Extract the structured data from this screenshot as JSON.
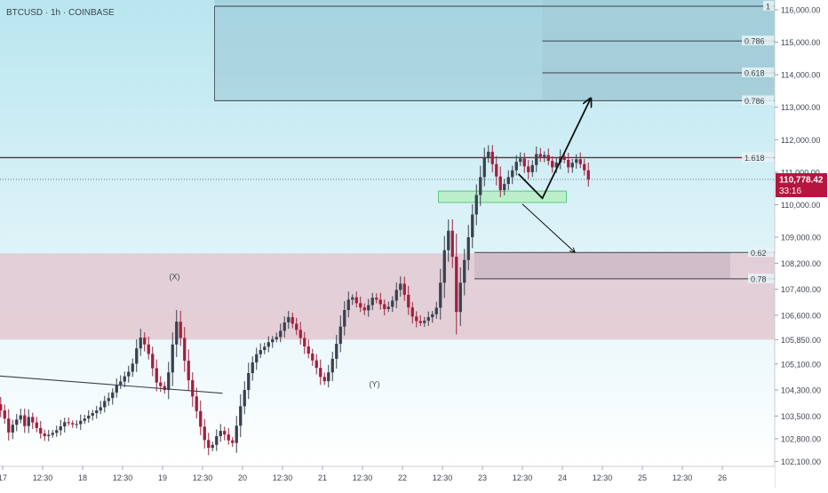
{
  "symbol_label": "BTCUSD · 1h · COINBASE",
  "colors": {
    "background_top": "#b9e6f0",
    "background_bottom": "#ffffff",
    "supply_zone": "#8fbfcc",
    "demand_zone": "#e2c2cb",
    "target_box": "#a0c9d6",
    "green_box": "#b9eec9",
    "green_box_border": "#3fbf6a",
    "grey_box": "#c9b7c2",
    "fib_line": "#3c4048",
    "level_line_red": "#7a2338",
    "candle_up": "#3a414d",
    "candle_down": "#a0203e",
    "price_badge": "#b5153f",
    "axis_text": "#3f4450",
    "arrow": "#111111",
    "trendline": "#3a414d"
  },
  "last_price": {
    "value": "110,778.42",
    "countdown": "33:16"
  },
  "annotations": {
    "x_label": "(X)",
    "y_label": "(Y)"
  },
  "fib_labels": {
    "top_1": "1",
    "top_0786": "0.786",
    "top_0618": "0.618",
    "left_0786": "0.786",
    "ext_1618": "1.618",
    "retr_062": "0.62",
    "retr_078": "0.78"
  },
  "chart_data": {
    "type": "candlestick",
    "symbol": "BTCUSD",
    "timeframe": "1h",
    "exchange": "COINBASE",
    "y_axis": {
      "range": [
        101950,
        116300
      ],
      "tick_labels": [
        "116,000.00",
        "115,000.00",
        "114,000.00",
        "113,000.00",
        "112,000.00",
        "111,000.00",
        "110,000.00",
        "109,000.00",
        "108,200.00",
        "107,400.00",
        "106,600.00",
        "105,850.00",
        "105,100.00",
        "104,300.00",
        "103,500.00",
        "102,800.00",
        "102,100.00"
      ],
      "tick_values": [
        116000,
        115000,
        114000,
        113000,
        112000,
        111000,
        110000,
        109000,
        108200,
        107400,
        106600,
        105850,
        105100,
        104300,
        103500,
        102800,
        102100
      ]
    },
    "x_axis": {
      "tick_labels": [
        "17",
        "12:30",
        "18",
        "12:30",
        "19",
        "12:30",
        "20",
        "12:30",
        "21",
        "12:30",
        "22",
        "12:30",
        "23",
        "12:30",
        "24",
        "12:30",
        "25",
        "12:30",
        "26"
      ],
      "tick_bars": [
        8,
        18,
        28,
        38,
        48,
        58,
        68,
        78,
        88,
        98,
        108,
        118,
        128,
        138,
        148,
        158,
        168,
        178,
        188
      ]
    },
    "closes": [
      104020,
      104260,
      104450,
      104200,
      104370,
      104140,
      103860,
      103670,
      103420,
      102990,
      103230,
      103390,
      103520,
      103190,
      103470,
      103300,
      103130,
      102960,
      102880,
      102920,
      102980,
      103060,
      103180,
      103310,
      103280,
      103240,
      103250,
      103350,
      103420,
      103510,
      103590,
      103670,
      103770,
      103960,
      104050,
      104220,
      104460,
      104560,
      104720,
      104860,
      105110,
      105580,
      105910,
      105700,
      105410,
      104970,
      104530,
      104420,
      104300,
      104840,
      105700,
      106400,
      105900,
      105200,
      104600,
      104100,
      103650,
      103170,
      102760,
      102520,
      102610,
      102880,
      103040,
      102930,
      102750,
      102670,
      103200,
      103800,
      104300,
      104820,
      105150,
      105400,
      105530,
      105630,
      105770,
      105860,
      105930,
      106120,
      106380,
      106540,
      106340,
      106150,
      105900,
      105640,
      105420,
      105210,
      104980,
      104700,
      104570,
      104840,
      105260,
      105720,
      106250,
      106760,
      107080,
      107150,
      106970,
      106840,
      106750,
      106910,
      107140,
      107080,
      106940,
      106790,
      106860,
      107050,
      107380,
      107570,
      107230,
      106840,
      106560,
      106420,
      106360,
      106430,
      106540,
      106630,
      106830,
      107600,
      108600,
      109200,
      108400,
      106700,
      107600,
      108300,
      109000,
      109700,
      110300,
      110850,
      111450,
      111630,
      111250,
      110870,
      110450,
      110640,
      110850,
      111060,
      111320,
      111420,
      111180,
      111000,
      111220,
      111560,
      111470,
      111530,
      111350,
      111150,
      111300,
      111480,
      111380,
      111150,
      111290,
      111400,
      111250,
      111060,
      110778
    ],
    "levels": [
      {
        "label": "1",
        "price": 116110
      },
      {
        "label": "0.786",
        "price": 115040
      },
      {
        "label": "0.618",
        "price": 114060
      },
      {
        "label": "0.786",
        "price": 113200
      },
      {
        "label": "1.618",
        "price": 111450
      },
      {
        "label": "0.62",
        "price": 108530
      },
      {
        "label": "0.78",
        "price": 107720
      }
    ],
    "zones": [
      {
        "name": "supply",
        "from_bar": 61,
        "price_low": 113200,
        "price_high": 116300
      },
      {
        "name": "demand",
        "from_bar": 0,
        "price_low": 105850,
        "price_high": 108500
      },
      {
        "name": "target",
        "from_bar": 143,
        "price_low": 113200,
        "price_high": 116300
      },
      {
        "name": "green-entry",
        "from_bar": 117,
        "to_bar": 149,
        "price_low": 110070,
        "price_high": 110420
      },
      {
        "name": "grey-retracement",
        "from_bar": 126,
        "to_bar": 190,
        "price_low": 107720,
        "price_high": 108530
      }
    ],
    "trendline": {
      "from_bar": 0,
      "from_price": 104800,
      "to_bar": 63,
      "to_price": 104200
    },
    "projection_up": [
      [
        137,
        110950
      ],
      [
        143,
        110200
      ],
      [
        155,
        113250
      ]
    ],
    "projection_down": [
      [
        138,
        110020
      ],
      [
        151,
        108550
      ]
    ],
    "labels": [
      {
        "text": "(X)",
        "bar": 51,
        "price": 107700
      },
      {
        "text": "(Y)",
        "bar": 101,
        "price": 104400
      }
    ],
    "current_price": 110778.42
  }
}
